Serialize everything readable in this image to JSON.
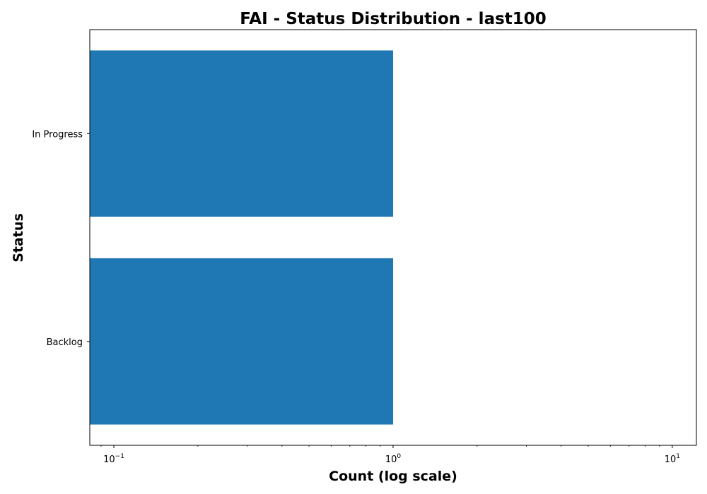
{
  "chart_data": {
    "type": "bar",
    "orientation": "horizontal",
    "title": "FAI - Status Distribution - last100",
    "xlabel": "Count (log scale)",
    "ylabel": "Status",
    "xscale": "log",
    "xlim": [
      0.082,
      12.2
    ],
    "categories": [
      "In Progress",
      "Backlog"
    ],
    "values": [
      1,
      1
    ],
    "x_ticks": [
      {
        "base": "10",
        "exp": "−1",
        "value": 0.1
      },
      {
        "base": "10",
        "exp": "0",
        "value": 1
      },
      {
        "base": "10",
        "exp": "1",
        "value": 10
      }
    ],
    "grid": false,
    "legend": "none",
    "bar_color": "#1f77b4"
  }
}
